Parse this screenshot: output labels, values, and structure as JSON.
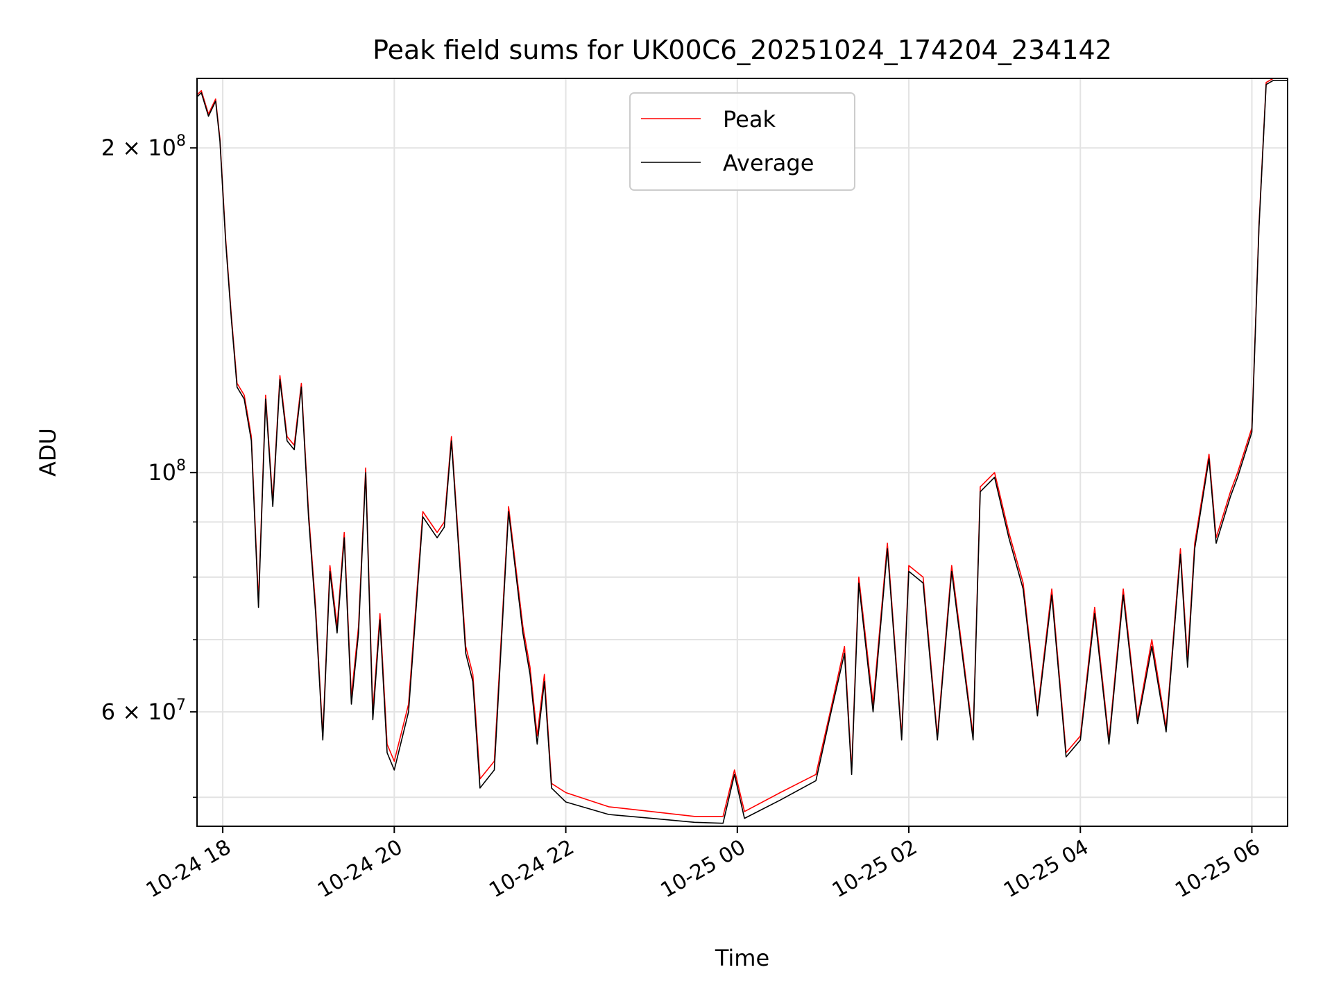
{
  "chart_data": {
    "type": "line",
    "title": "Peak field sums for UK00C6_20251024_174204_234142",
    "xlabel": "Time",
    "ylabel": "ADU",
    "y_scale": "log",
    "ylim": [
      47000000,
      232000000
    ],
    "xlim": [
      "2025-10-24 17:42",
      "2025-10-25 06:25"
    ],
    "grid": true,
    "legend_position": "top-center",
    "x_ticks": [
      {
        "t": "2025-10-24 18:00",
        "label": "10-24 18"
      },
      {
        "t": "2025-10-24 20:00",
        "label": "10-24 20"
      },
      {
        "t": "2025-10-24 22:00",
        "label": "10-24 22"
      },
      {
        "t": "2025-10-25 00:00",
        "label": "10-25 00"
      },
      {
        "t": "2025-10-25 02:00",
        "label": "10-25 02"
      },
      {
        "t": "2025-10-25 04:00",
        "label": "10-25 04"
      },
      {
        "t": "2025-10-25 06:00",
        "label": "10-25 06"
      }
    ],
    "y_major_ticks": [
      {
        "v": 100000000,
        "base": "10",
        "exp": "8"
      },
      {
        "v": 200000000,
        "base": "2 × 10",
        "exp": "8"
      },
      {
        "v": 60000000,
        "base": "6 × 10",
        "exp": "7"
      }
    ],
    "y_minor_ticks": [
      50000000,
      70000000,
      80000000,
      90000000
    ],
    "colors": {
      "peak": "#ff0000",
      "average": "#000000"
    },
    "series": [
      {
        "name": "Peak",
        "color": "#ff0000",
        "x": [
          "2025-10-24 17:42",
          "2025-10-24 17:45",
          "2025-10-24 17:50",
          "2025-10-24 17:55",
          "2025-10-24 17:58",
          "2025-10-24 18:02",
          "2025-10-24 18:06",
          "2025-10-24 18:10",
          "2025-10-24 18:15",
          "2025-10-24 18:20",
          "2025-10-24 18:25",
          "2025-10-24 18:30",
          "2025-10-24 18:35",
          "2025-10-24 18:40",
          "2025-10-24 18:45",
          "2025-10-24 18:50",
          "2025-10-24 18:55",
          "2025-10-24 19:00",
          "2025-10-24 19:05",
          "2025-10-24 19:10",
          "2025-10-24 19:15",
          "2025-10-24 19:20",
          "2025-10-24 19:25",
          "2025-10-24 19:30",
          "2025-10-24 19:35",
          "2025-10-24 19:40",
          "2025-10-24 19:45",
          "2025-10-24 19:50",
          "2025-10-24 19:55",
          "2025-10-24 20:00",
          "2025-10-24 20:10",
          "2025-10-24 20:20",
          "2025-10-24 20:30",
          "2025-10-24 20:35",
          "2025-10-24 20:40",
          "2025-10-24 20:50",
          "2025-10-24 20:55",
          "2025-10-24 21:00",
          "2025-10-24 21:10",
          "2025-10-24 21:20",
          "2025-10-24 21:30",
          "2025-10-24 21:35",
          "2025-10-24 21:40",
          "2025-10-24 21:45",
          "2025-10-24 21:50",
          "2025-10-24 22:00",
          "2025-10-24 22:30",
          "2025-10-24 23:00",
          "2025-10-24 23:30",
          "2025-10-24 23:50",
          "2025-10-24 23:58",
          "2025-10-25 00:05",
          "2025-10-25 00:30",
          "2025-10-25 00:55",
          "2025-10-25 01:05",
          "2025-10-25 01:15",
          "2025-10-25 01:20",
          "2025-10-25 01:25",
          "2025-10-25 01:35",
          "2025-10-25 01:45",
          "2025-10-25 01:55",
          "2025-10-25 02:00",
          "2025-10-25 02:10",
          "2025-10-25 02:20",
          "2025-10-25 02:30",
          "2025-10-25 02:45",
          "2025-10-25 02:50",
          "2025-10-25 03:00",
          "2025-10-25 03:10",
          "2025-10-25 03:20",
          "2025-10-25 03:30",
          "2025-10-25 03:40",
          "2025-10-25 03:50",
          "2025-10-25 04:00",
          "2025-10-25 04:10",
          "2025-10-25 04:20",
          "2025-10-25 04:30",
          "2025-10-25 04:40",
          "2025-10-25 04:50",
          "2025-10-25 05:00",
          "2025-10-25 05:10",
          "2025-10-25 05:15",
          "2025-10-25 05:20",
          "2025-10-25 05:30",
          "2025-10-25 05:35",
          "2025-10-25 05:45",
          "2025-10-25 05:50",
          "2025-10-25 06:00",
          "2025-10-25 06:05",
          "2025-10-25 06:10",
          "2025-10-25 06:15",
          "2025-10-25 06:20",
          "2025-10-25 06:25"
        ],
        "y": [
          224000000,
          226000000,
          215000000,
          222000000,
          204000000,
          165000000,
          140000000,
          121000000,
          118000000,
          108000000,
          76000000,
          118000000,
          94000000,
          123000000,
          108000000,
          106000000,
          121000000,
          92000000,
          75000000,
          57000000,
          82000000,
          72000000,
          88000000,
          62000000,
          72000000,
          101000000,
          60000000,
          74000000,
          56000000,
          54000000,
          61000000,
          92000000,
          88000000,
          90000000,
          108000000,
          69000000,
          65000000,
          52000000,
          54000000,
          93000000,
          72000000,
          66000000,
          57000000,
          65000000,
          51500000,
          50500000,
          49000000,
          48500000,
          48000000,
          48000000,
          53000000,
          48500000,
          50500000,
          52500000,
          60000000,
          69000000,
          53000000,
          80000000,
          61000000,
          86000000,
          57000000,
          82000000,
          80000000,
          57000000,
          82000000,
          57000000,
          97000000,
          100000000,
          88000000,
          79000000,
          60000000,
          78000000,
          55000000,
          57000000,
          75000000,
          56500000,
          78000000,
          59000000,
          70000000,
          58000000,
          85000000,
          67000000,
          86000000,
          104000000,
          87000000,
          96000000,
          100000000,
          110000000,
          170000000,
          230000000,
          232000000,
          232000000,
          232000000
        ]
      },
      {
        "name": "Average",
        "color": "#000000",
        "x": [
          "2025-10-24 17:42",
          "2025-10-24 17:45",
          "2025-10-24 17:50",
          "2025-10-24 17:55",
          "2025-10-24 17:58",
          "2025-10-24 18:02",
          "2025-10-24 18:06",
          "2025-10-24 18:10",
          "2025-10-24 18:15",
          "2025-10-24 18:20",
          "2025-10-24 18:25",
          "2025-10-24 18:30",
          "2025-10-24 18:35",
          "2025-10-24 18:40",
          "2025-10-24 18:45",
          "2025-10-24 18:50",
          "2025-10-24 18:55",
          "2025-10-24 19:00",
          "2025-10-24 19:05",
          "2025-10-24 19:10",
          "2025-10-24 19:15",
          "2025-10-24 19:20",
          "2025-10-24 19:25",
          "2025-10-24 19:30",
          "2025-10-24 19:35",
          "2025-10-24 19:40",
          "2025-10-24 19:45",
          "2025-10-24 19:50",
          "2025-10-24 19:55",
          "2025-10-24 20:00",
          "2025-10-24 20:10",
          "2025-10-24 20:20",
          "2025-10-24 20:30",
          "2025-10-24 20:35",
          "2025-10-24 20:40",
          "2025-10-24 20:50",
          "2025-10-24 20:55",
          "2025-10-24 21:00",
          "2025-10-24 21:10",
          "2025-10-24 21:20",
          "2025-10-24 21:30",
          "2025-10-24 21:35",
          "2025-10-24 21:40",
          "2025-10-24 21:45",
          "2025-10-24 21:50",
          "2025-10-24 22:00",
          "2025-10-24 22:30",
          "2025-10-24 23:00",
          "2025-10-24 23:30",
          "2025-10-24 23:50",
          "2025-10-24 23:58",
          "2025-10-25 00:05",
          "2025-10-25 00:30",
          "2025-10-25 00:55",
          "2025-10-25 01:05",
          "2025-10-25 01:15",
          "2025-10-25 01:20",
          "2025-10-25 01:25",
          "2025-10-25 01:35",
          "2025-10-25 01:45",
          "2025-10-25 01:55",
          "2025-10-25 02:00",
          "2025-10-25 02:10",
          "2025-10-25 02:20",
          "2025-10-25 02:30",
          "2025-10-25 02:45",
          "2025-10-25 02:50",
          "2025-10-25 03:00",
          "2025-10-25 03:10",
          "2025-10-25 03:20",
          "2025-10-25 03:30",
          "2025-10-25 03:40",
          "2025-10-25 03:50",
          "2025-10-25 04:00",
          "2025-10-25 04:10",
          "2025-10-25 04:20",
          "2025-10-25 04:30",
          "2025-10-25 04:40",
          "2025-10-25 04:50",
          "2025-10-25 05:00",
          "2025-10-25 05:10",
          "2025-10-25 05:15",
          "2025-10-25 05:20",
          "2025-10-25 05:30",
          "2025-10-25 05:35",
          "2025-10-25 05:45",
          "2025-10-25 05:50",
          "2025-10-25 06:00",
          "2025-10-25 06:05",
          "2025-10-25 06:10",
          "2025-10-25 06:15",
          "2025-10-25 06:20",
          "2025-10-25 06:25"
        ],
        "y": [
          223000000,
          225000000,
          214000000,
          221000000,
          203000000,
          164000000,
          139000000,
          120000000,
          117000000,
          107000000,
          75000000,
          117000000,
          93000000,
          122000000,
          107000000,
          105000000,
          120000000,
          91000000,
          74000000,
          56500000,
          81000000,
          71000000,
          87000000,
          61000000,
          71000000,
          100000000,
          59000000,
          73000000,
          55000000,
          53000000,
          60000000,
          91000000,
          87000000,
          89000000,
          107000000,
          68000000,
          64000000,
          51000000,
          53000000,
          92000000,
          71000000,
          65000000,
          56000000,
          64000000,
          51000000,
          49500000,
          48200000,
          47800000,
          47400000,
          47300000,
          52500000,
          47800000,
          49700000,
          51800000,
          59500000,
          68000000,
          52500000,
          79000000,
          60000000,
          85000000,
          56500000,
          81000000,
          79000000,
          56500000,
          81000000,
          56500000,
          96000000,
          99000000,
          87000000,
          78000000,
          59500000,
          77000000,
          54500000,
          56500000,
          74000000,
          56000000,
          77000000,
          58500000,
          69000000,
          57500000,
          84000000,
          66000000,
          85000000,
          103000000,
          86000000,
          95000000,
          99000000,
          109000000,
          169000000,
          229000000,
          231000000,
          231000000,
          231000000
        ]
      }
    ]
  }
}
